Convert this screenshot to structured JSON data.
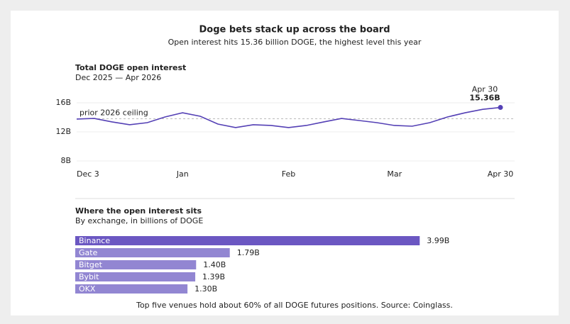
{
  "title": "Doge bets stack up across the board",
  "subtitle": "Open interest hits 15.36 billion DOGE, the highest level this year",
  "footnote": "Top five venues hold about 60% of all DOGE futures positions. Source: Coinglass.",
  "chart_data": [
    {
      "type": "line",
      "title": "Total DOGE open interest",
      "subtitle": "Dec 2025 — Apr 2026",
      "categories": [
        "Dec 3",
        null,
        null,
        null,
        null,
        null,
        "Jan",
        null,
        null,
        null,
        null,
        null,
        "Feb",
        null,
        null,
        null,
        null,
        null,
        "Mar",
        null,
        null,
        null,
        null,
        null,
        "Apr 30"
      ],
      "series": [
        {
          "name": "Total DOGE open interest",
          "color": "#5440b5",
          "values": [
            13.76,
            13.85,
            13.37,
            12.98,
            13.27,
            14.05,
            14.63,
            14.15,
            13.07,
            12.59,
            12.98,
            12.88,
            12.59,
            12.88,
            13.37,
            13.85,
            13.56,
            13.27,
            12.88,
            12.78,
            13.27,
            14.05,
            14.63,
            15.1,
            15.36
          ],
          "value_labels": [
            null,
            null,
            null,
            null,
            null,
            null,
            null,
            null,
            null,
            null,
            null,
            null,
            null,
            null,
            null,
            null,
            null,
            null,
            null,
            null,
            null,
            null,
            null,
            null,
            "15.36B"
          ]
        }
      ],
      "reference_line": {
        "label": "prior 2026 ceiling",
        "value": 13.8
      },
      "ylim": [
        8,
        18
      ],
      "yticks": [
        {
          "value": 16,
          "label": "16B"
        },
        {
          "value": 12,
          "label": "12B"
        },
        {
          "value": 8,
          "label": "8B"
        }
      ],
      "grid": true
    },
    {
      "type": "hbar",
      "title": "Where the open interest sits",
      "subtitle": "By exchange, in billions of DOGE",
      "categories": [
        "Binance",
        "Gate",
        "Bitget",
        "Bybit",
        "OKX"
      ],
      "values": [
        3.99,
        1.79,
        1.4,
        1.39,
        1.3
      ],
      "value_labels": [
        "3.99B",
        "1.79B",
        "1.40B",
        "1.39B",
        "1.30B"
      ],
      "colors": [
        "#6b57c2",
        "#9286d2",
        "#9286d2",
        "#9286d2",
        "#9286d2"
      ],
      "xlim": [
        0,
        4
      ]
    }
  ]
}
